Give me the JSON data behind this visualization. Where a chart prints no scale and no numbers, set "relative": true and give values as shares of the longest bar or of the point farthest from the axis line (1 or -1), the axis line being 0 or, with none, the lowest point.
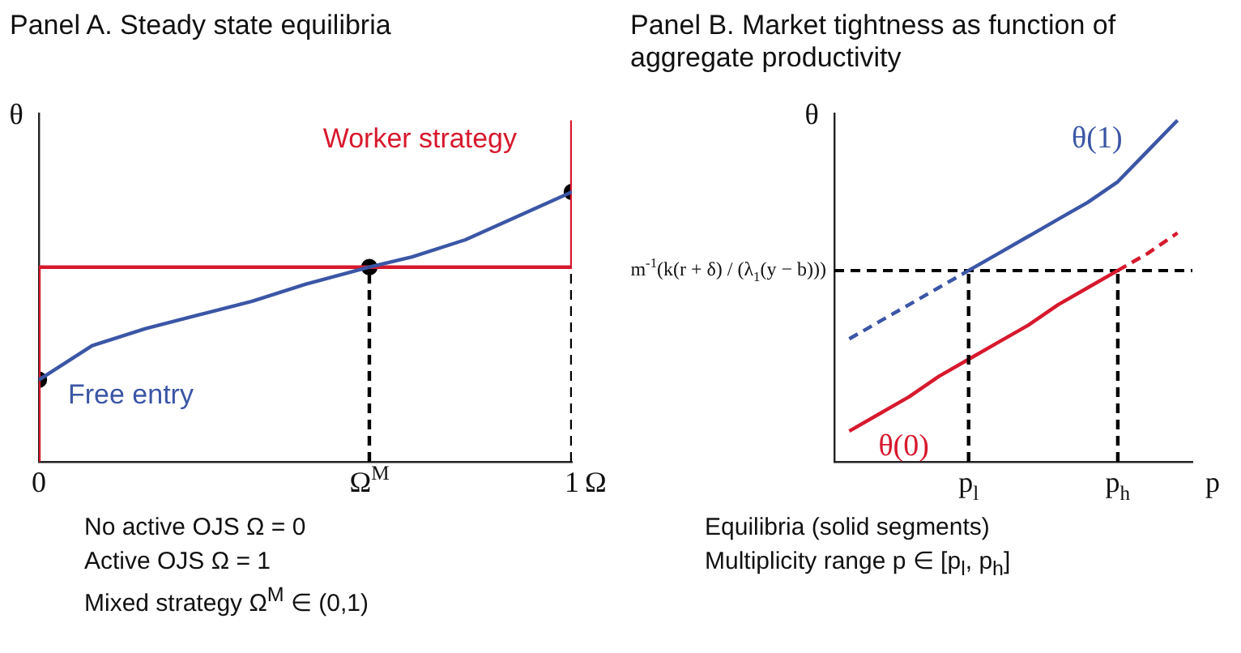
{
  "chart_data": [
    {
      "type": "line",
      "title": "Panel A. Steady state equilibria",
      "xlabel": "Ω",
      "ylabel": "θ",
      "relative": true,
      "xlim": [
        0,
        1
      ],
      "xticks": [
        {
          "value": 0,
          "label": "0"
        },
        {
          "value": 0.62,
          "label": "Ω$^{M}$"
        },
        {
          "value": 1,
          "label": "1"
        }
      ],
      "grid": false,
      "legend": false,
      "series": [
        {
          "type": "line",
          "color": "#000000",
          "line_style": "dashed",
          "x": [
            0.62,
            0.62
          ],
          "values": [
            0,
            0.57
          ]
        },
        {
          "type": "line",
          "color": "#000000",
          "line_style": "dashed",
          "x": [
            1,
            1
          ],
          "values": [
            0,
            0.57
          ]
        },
        {
          "type": "line",
          "name": "Free entry",
          "color": "#3b56a6",
          "x": [
            0,
            0.1,
            0.2,
            0.3,
            0.4,
            0.5,
            0.62,
            0.7,
            0.8,
            0.9,
            1
          ],
          "values": [
            0.24,
            0.34,
            0.39,
            0.43,
            0.47,
            0.52,
            0.57,
            0.6,
            0.65,
            0.72,
            0.79
          ]
        },
        {
          "type": "line",
          "name": "Worker strategy",
          "color": "#d7192d",
          "x": [
            0,
            0,
            1,
            1
          ],
          "values": [
            0,
            0.57,
            0.57,
            1
          ]
        },
        {
          "type": "scatter",
          "color": "#000000",
          "x": [
            0,
            0.62,
            1
          ],
          "values": [
            0.24,
            0.57,
            0.79
          ]
        }
      ],
      "annotations": [
        "No active OJS Ω = 0",
        "Active OJS Ω = 1",
        "Mixed strategy Ω$^{M}$ ∈ (0,1)"
      ]
    },
    {
      "type": "line",
      "title": "Panel B. Market tightness as function of aggregate productivity",
      "xlabel": "p",
      "ylabel": "θ",
      "relative": true,
      "categories": [
        null,
        null,
        null,
        null,
        "p$_{l}$",
        null,
        null,
        null,
        null,
        "p$_{h}$",
        null,
        null
      ],
      "grid": false,
      "legend": false,
      "series": [
        {
          "type": "line",
          "color": "#000000",
          "line_style": "dashed",
          "x": [
            "p$_{l}$",
            "p$_{l}$"
          ],
          "values": [
            0,
            0.56
          ]
        },
        {
          "type": "line",
          "color": "#000000",
          "line_style": "dashed",
          "x": [
            "p$_{h}$",
            "p$_{h}$"
          ],
          "values": [
            0,
            0.56
          ]
        },
        {
          "type": "line",
          "color": "#3b56a6",
          "line_style": "dashed",
          "values": [
            0.36,
            0.41,
            0.46,
            0.51,
            0.56,
            null,
            null,
            null,
            null,
            null,
            null,
            null
          ]
        },
        {
          "type": "line",
          "name": "θ(1)",
          "color": "#3b56a6",
          "values": [
            null,
            null,
            null,
            null,
            0.56,
            0.61,
            0.66,
            0.71,
            0.76,
            0.82,
            0.91,
            1
          ]
        },
        {
          "type": "line",
          "name": "θ(0)",
          "color": "#d7192d",
          "values": [
            0.09,
            0.14,
            0.19,
            0.25,
            0.3,
            0.35,
            0.4,
            0.46,
            0.51,
            0.56,
            null,
            null
          ]
        },
        {
          "type": "line",
          "color": "#d7192d",
          "line_style": "dashed",
          "values": [
            null,
            null,
            null,
            null,
            null,
            null,
            null,
            null,
            null,
            0.56,
            0.61,
            0.67
          ]
        }
      ],
      "ref_lines": [
        {
          "axis": "y",
          "value": 0.56,
          "label": "m$^{-1}$(k(r + δ) / (λ$_{1}$(y − b)))",
          "color": "#000000",
          "line_style": "dashed"
        }
      ],
      "annotations": [
        "Equilibria (solid segments)",
        "Multiplicity range p ∈ [p$_{l}$, p$_{h}$]"
      ]
    }
  ]
}
